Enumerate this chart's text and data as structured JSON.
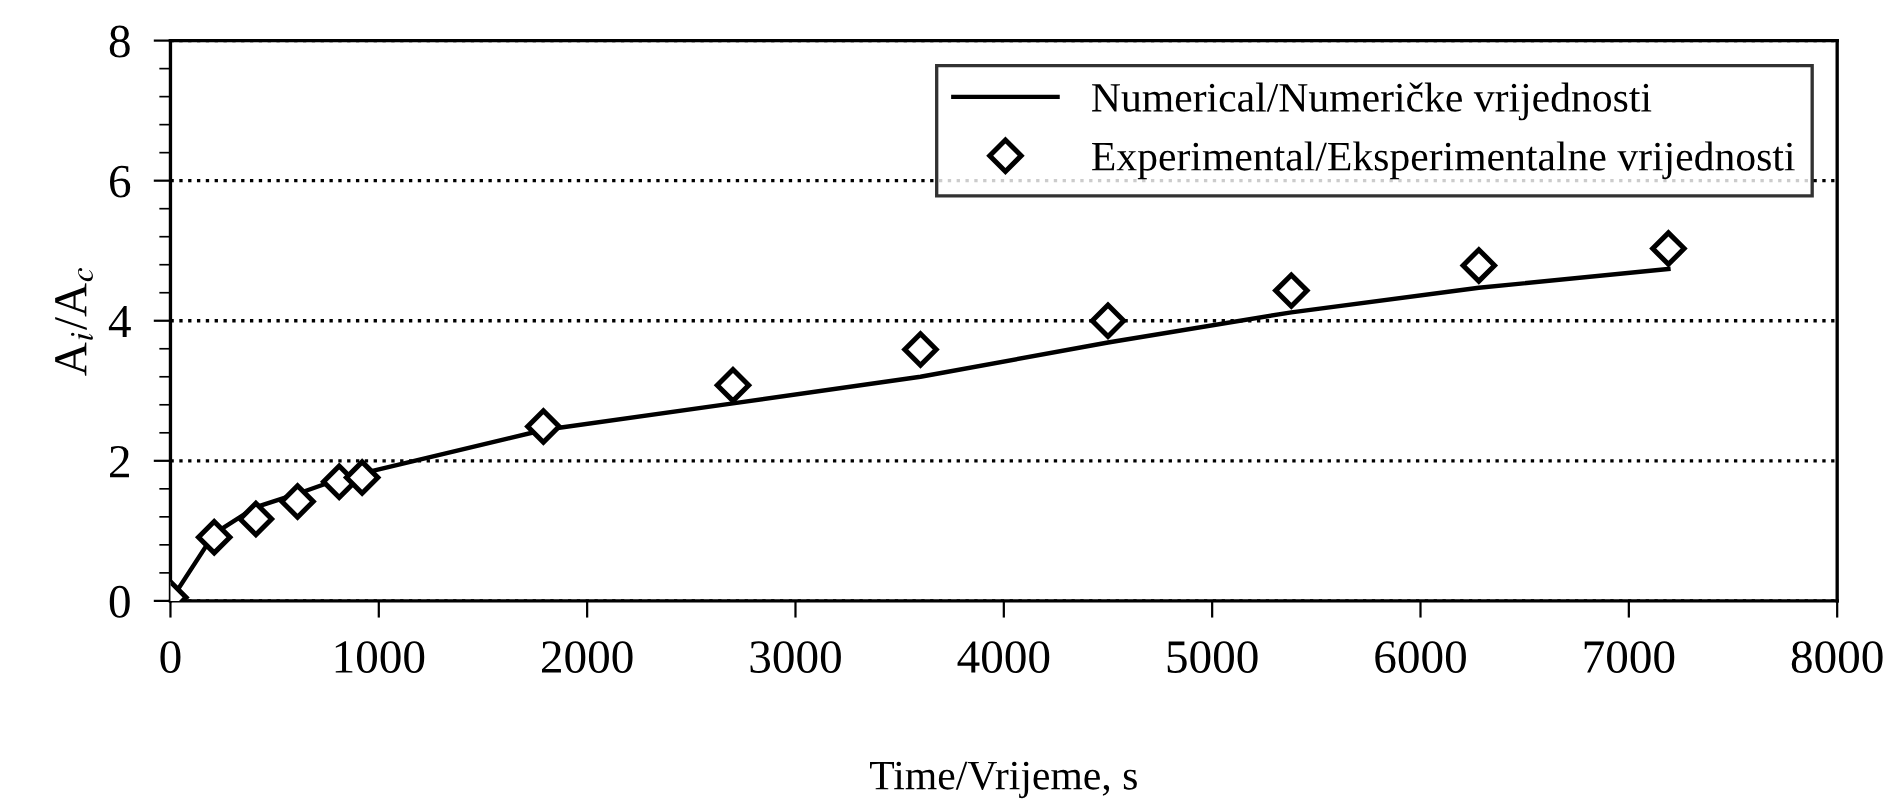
{
  "chart_data": {
    "type": "line",
    "xlabel": "Time/Vrijeme, s",
    "ylabel": "A$_{i}$/A$_{c}$",
    "xlim": [
      0,
      8000
    ],
    "xticks": [
      0,
      1000,
      2000,
      3000,
      4000,
      5000,
      6000,
      7000,
      8000
    ],
    "ylim": [
      0,
      8
    ],
    "yticks": [
      0,
      2,
      4,
      6,
      8
    ],
    "grid": "y",
    "legend": "top right",
    "series": [
      {
        "name": "Numerical/Numeričke vrijednosti",
        "color": "#000000",
        "marker": "none",
        "line_style": "solid",
        "x": [
          0,
          210,
          410,
          610,
          810,
          920,
          1790,
          2700,
          3600,
          4500,
          5380,
          6280,
          7190
        ],
        "values": [
          0.0,
          0.96,
          1.34,
          1.53,
          1.74,
          1.82,
          2.44,
          2.82,
          3.2,
          3.69,
          4.12,
          4.47,
          4.74
        ]
      },
      {
        "name": "Experimental/Eksperimentalne vrijednosti",
        "type": "scatter",
        "color": "#000000",
        "marker": "diamond",
        "x": [
          0,
          210,
          410,
          610,
          810,
          920,
          1790,
          2700,
          3600,
          4500,
          5380,
          6280,
          7190
        ],
        "values": [
          0.05,
          0.91,
          1.17,
          1.42,
          1.7,
          1.76,
          2.49,
          3.08,
          3.59,
          4.0,
          4.43,
          4.79,
          5.03
        ]
      }
    ]
  }
}
